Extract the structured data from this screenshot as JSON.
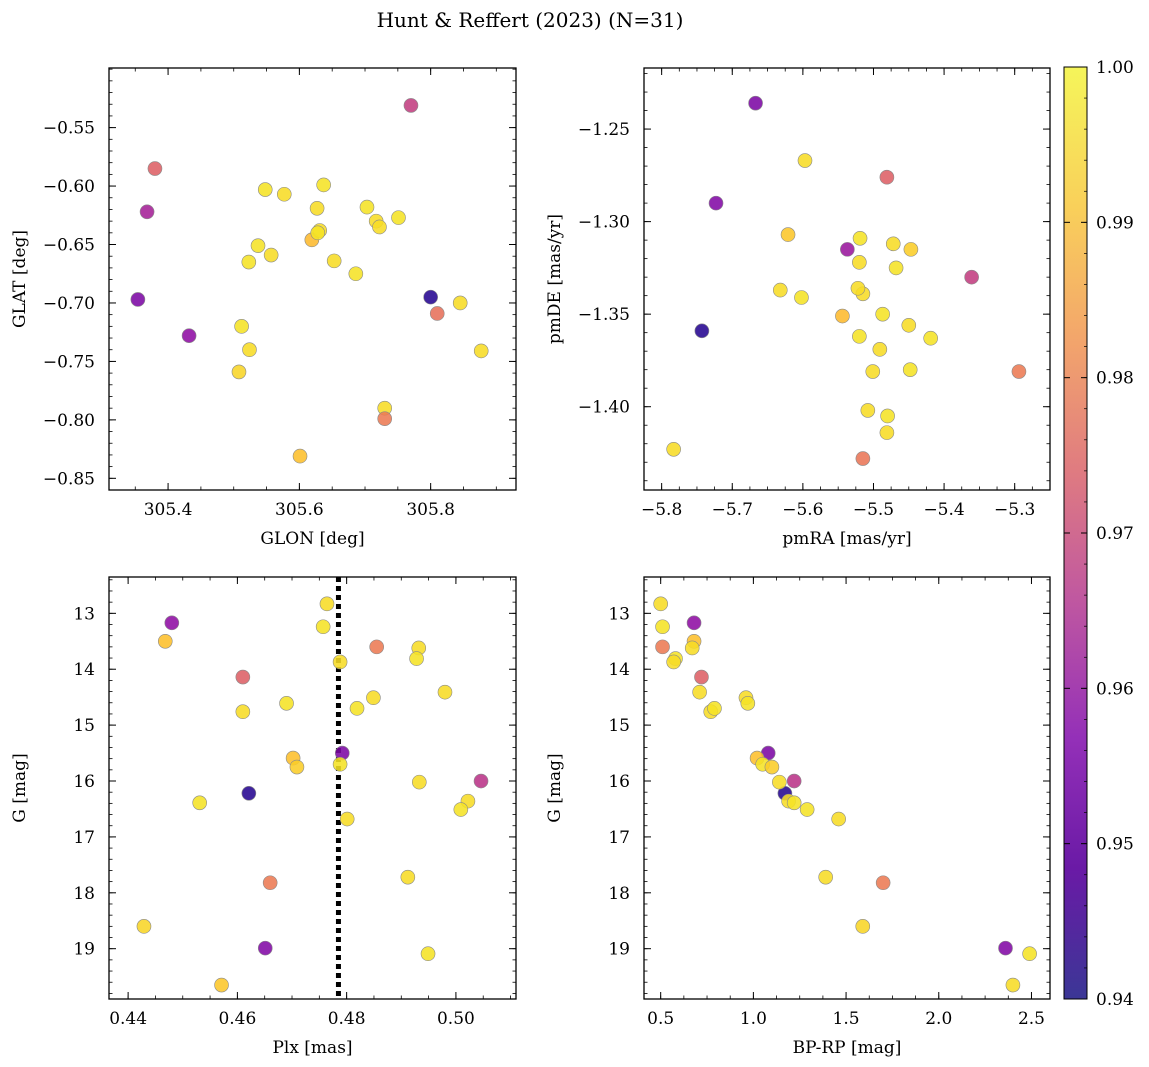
{
  "figure_title": "Hunt & Reffert (2023) (N=31)",
  "colorbar": {
    "range": [
      0.94,
      1.0
    ],
    "ticks": [
      "0.94",
      "0.95",
      "0.96",
      "0.97",
      "0.98",
      "0.99",
      "1.00"
    ],
    "tick_values": [
      0.94,
      0.95,
      0.96,
      0.97,
      0.98,
      0.99,
      1.0
    ],
    "colormap": "plasma"
  },
  "chart_data": [
    {
      "id": "glon-glat",
      "type": "scatter",
      "xlabel": "GLON [deg]",
      "ylabel": "GLAT [deg]",
      "xlim": [
        305.31,
        305.93
      ],
      "ylim": [
        -0.86,
        -0.499
      ],
      "xticks": [
        305.4,
        305.6,
        305.8
      ],
      "xtick_labels": [
        "305.4",
        "305.6",
        "305.8"
      ],
      "yticks": [
        -0.55,
        -0.6,
        -0.65,
        -0.7,
        -0.75,
        -0.8,
        -0.85
      ],
      "ytick_labels": [
        "−0.55",
        "−0.60",
        "−0.65",
        "−0.70",
        "−0.75",
        "−0.80",
        "−0.85"
      ],
      "x": [
        305.77,
        305.38,
        305.368,
        305.354,
        305.432,
        305.8,
        305.81,
        305.548,
        305.577,
        305.637,
        305.627,
        305.703,
        305.717,
        305.722,
        305.751,
        305.619,
        305.631,
        305.537,
        305.557,
        305.523,
        305.653,
        305.686,
        305.845,
        305.512,
        305.524,
        305.508,
        305.877,
        305.73,
        305.73,
        305.601,
        305.628
      ],
      "y": [
        -0.531,
        -0.585,
        -0.622,
        -0.697,
        -0.728,
        -0.695,
        -0.709,
        -0.603,
        -0.607,
        -0.599,
        -0.619,
        -0.618,
        -0.63,
        -0.635,
        -0.627,
        -0.646,
        -0.638,
        -0.651,
        -0.659,
        -0.665,
        -0.664,
        -0.675,
        -0.7,
        -0.72,
        -0.74,
        -0.759,
        -0.741,
        -0.79,
        -0.799,
        -0.831,
        -0.64
      ],
      "color": [
        0.968,
        0.975,
        0.962,
        0.955,
        0.958,
        0.943,
        0.978,
        0.997,
        0.996,
        0.997,
        0.996,
        0.997,
        0.996,
        0.996,
        0.997,
        0.991,
        0.996,
        0.997,
        0.996,
        0.997,
        0.996,
        0.997,
        0.996,
        0.997,
        0.996,
        0.995,
        0.996,
        0.996,
        0.98,
        0.992,
        0.997
      ]
    },
    {
      "id": "pmra-pmde",
      "type": "scatter",
      "xlabel": "pmRA [mas/yr]",
      "ylabel": "pmDE [mas/yr]",
      "xlim": [
        -5.825,
        -5.25
      ],
      "ylim": [
        -1.445,
        -1.217
      ],
      "xticks": [
        -5.8,
        -5.7,
        -5.6,
        -5.5,
        -5.4,
        -5.3
      ],
      "xtick_labels": [
        "−5.8",
        "−5.7",
        "−5.6",
        "−5.5",
        "−5.4",
        "−5.3"
      ],
      "yticks": [
        -1.25,
        -1.3,
        -1.35,
        -1.4
      ],
      "ytick_labels": [
        "−1.25",
        "−1.30",
        "−1.35",
        "−1.40"
      ],
      "x": [
        -5.667,
        -5.723,
        -5.743,
        -5.597,
        -5.481,
        -5.621,
        -5.537,
        -5.519,
        -5.472,
        -5.447,
        -5.361,
        -5.632,
        -5.602,
        -5.52,
        -5.515,
        -5.468,
        -5.522,
        -5.544,
        -5.487,
        -5.45,
        -5.491,
        -5.419,
        -5.501,
        -5.448,
        -5.508,
        -5.48,
        -5.481,
        -5.294,
        -5.783,
        -5.515,
        -5.52
      ],
      "y": [
        -1.236,
        -1.29,
        -1.359,
        -1.267,
        -1.276,
        -1.307,
        -1.315,
        -1.309,
        -1.312,
        -1.315,
        -1.33,
        -1.337,
        -1.341,
        -1.322,
        -1.339,
        -1.325,
        -1.336,
        -1.351,
        -1.35,
        -1.356,
        -1.369,
        -1.363,
        -1.381,
        -1.38,
        -1.402,
        -1.405,
        -1.414,
        -1.381,
        -1.423,
        -1.428,
        -1.362
      ],
      "color": [
        0.955,
        0.956,
        0.943,
        0.996,
        0.975,
        0.993,
        0.96,
        0.997,
        0.996,
        0.994,
        0.968,
        0.996,
        0.997,
        0.996,
        0.996,
        0.997,
        0.996,
        0.991,
        0.997,
        0.996,
        0.996,
        0.997,
        0.996,
        0.997,
        0.996,
        0.997,
        0.996,
        0.98,
        0.996,
        0.979,
        0.997
      ]
    },
    {
      "id": "plx-g",
      "type": "scatter",
      "xlabel": "Plx [mas]",
      "ylabel": "G [mag]",
      "xlim": [
        0.4365,
        0.511
      ],
      "ylim": [
        19.9,
        12.35
      ],
      "y_inverted": true,
      "vline": 0.4785,
      "xticks": [
        0.44,
        0.46,
        0.48,
        0.5
      ],
      "xtick_labels": [
        "0.44",
        "0.46",
        "0.48",
        "0.50"
      ],
      "yticks": [
        13,
        14,
        15,
        16,
        17,
        18,
        19
      ],
      "ytick_labels": [
        "13",
        "14",
        "15",
        "16",
        "17",
        "18",
        "19"
      ],
      "x": [
        0.4764,
        0.4757,
        0.448,
        0.4468,
        0.4788,
        0.4855,
        0.4932,
        0.4928,
        0.461,
        0.461,
        0.469,
        0.4849,
        0.4819,
        0.498,
        0.4792,
        0.4702,
        0.4788,
        0.4709,
        0.4621,
        0.5046,
        0.4933,
        0.4531,
        0.5022,
        0.5009,
        0.4801,
        0.466,
        0.4912,
        0.4429,
        0.4651,
        0.4949,
        0.4571
      ],
      "y": [
        12.83,
        13.24,
        13.17,
        13.5,
        13.87,
        13.6,
        13.62,
        13.81,
        14.14,
        14.76,
        14.61,
        14.51,
        14.7,
        14.41,
        15.5,
        15.59,
        15.7,
        15.75,
        16.22,
        16.0,
        16.02,
        16.39,
        16.36,
        16.51,
        16.68,
        17.82,
        17.72,
        18.6,
        18.99,
        19.09,
        19.65
      ],
      "color": [
        0.996,
        0.997,
        0.958,
        0.992,
        0.996,
        0.98,
        0.996,
        0.997,
        0.975,
        0.996,
        0.997,
        0.996,
        0.997,
        0.996,
        0.955,
        0.992,
        0.997,
        0.994,
        0.943,
        0.966,
        0.996,
        0.997,
        0.996,
        0.997,
        0.996,
        0.98,
        0.996,
        0.995,
        0.956,
        0.997,
        0.993
      ]
    },
    {
      "id": "bprp-g",
      "type": "scatter",
      "xlabel": "BP-RP [mag]",
      "ylabel": "G [mag]",
      "xlim": [
        0.41,
        2.6
      ],
      "ylim": [
        19.9,
        12.35
      ],
      "y_inverted": true,
      "xticks": [
        0.5,
        1.0,
        1.5,
        2.0,
        2.5
      ],
      "xtick_labels": [
        "0.5",
        "1.0",
        "1.5",
        "2.0",
        "2.5"
      ],
      "yticks": [
        13,
        14,
        15,
        16,
        17,
        18,
        19
      ],
      "ytick_labels": [
        "13",
        "14",
        "15",
        "16",
        "17",
        "18",
        "19"
      ],
      "x": [
        0.5,
        0.51,
        0.68,
        0.68,
        0.67,
        0.51,
        0.58,
        0.57,
        0.72,
        0.71,
        0.77,
        0.79,
        0.96,
        0.97,
        1.08,
        1.02,
        1.05,
        1.1,
        1.17,
        1.22,
        1.14,
        1.19,
        1.22,
        1.29,
        1.46,
        1.39,
        1.7,
        1.59,
        2.36,
        2.49,
        2.4
      ],
      "y": [
        12.83,
        13.24,
        13.17,
        13.5,
        13.62,
        13.6,
        13.81,
        13.87,
        14.14,
        14.41,
        14.76,
        14.7,
        14.51,
        14.61,
        15.5,
        15.59,
        15.7,
        15.75,
        16.22,
        16.0,
        16.02,
        16.36,
        16.39,
        16.51,
        16.68,
        17.72,
        17.82,
        18.6,
        18.99,
        19.09,
        19.65
      ],
      "color": [
        0.996,
        0.997,
        0.958,
        0.992,
        0.996,
        0.98,
        0.997,
        0.996,
        0.975,
        0.996,
        0.996,
        0.997,
        0.996,
        0.997,
        0.955,
        0.992,
        0.997,
        0.994,
        0.943,
        0.966,
        0.996,
        0.996,
        0.997,
        0.997,
        0.996,
        0.996,
        0.98,
        0.995,
        0.956,
        0.997,
        0.996
      ]
    }
  ]
}
